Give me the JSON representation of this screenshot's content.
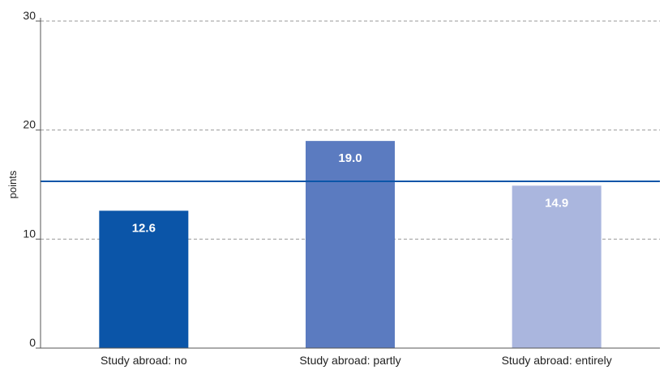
{
  "chart_data": {
    "type": "bar",
    "categories": [
      "Study abroad: no",
      "Study abroad: partly",
      "Study abroad: entirely"
    ],
    "values": [
      12.6,
      19.0,
      14.9
    ],
    "data_labels": [
      "12.6",
      "19.0",
      "14.9"
    ],
    "colors": [
      "#0b55a8",
      "#5b7bc0",
      "#aab6de"
    ],
    "xlabel": "",
    "ylabel": "points",
    "ylim": [
      0,
      30
    ],
    "yticks": [
      0,
      10,
      20,
      30
    ],
    "ytick_labels": [
      "0",
      "10",
      "20",
      "30"
    ],
    "reference_line": {
      "value": 15.3,
      "color": "#0b55a8"
    },
    "grid": "horizontal dashed",
    "legend": "none"
  }
}
